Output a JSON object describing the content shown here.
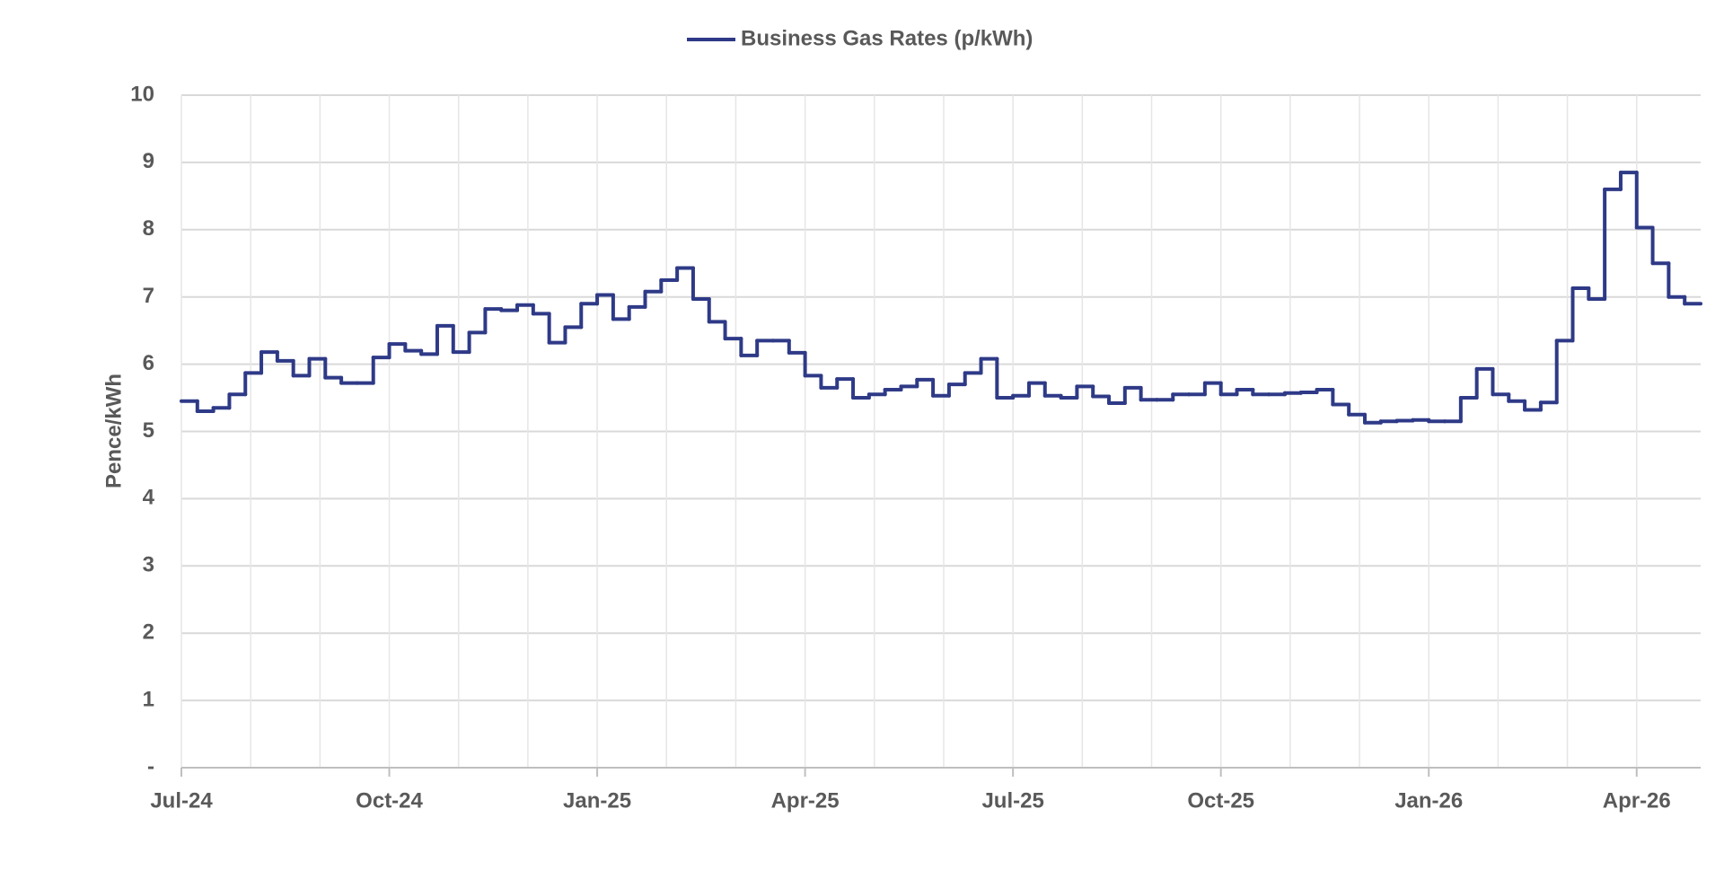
{
  "chart_data": {
    "type": "line",
    "step": true,
    "y_label": "Pence/kWh",
    "categories": [
      "Jul-24",
      null,
      null,
      null,
      null,
      null,
      null,
      null,
      null,
      null,
      null,
      null,
      null,
      "Oct-24",
      null,
      null,
      null,
      null,
      null,
      null,
      null,
      null,
      null,
      null,
      null,
      null,
      "Jan-25",
      null,
      null,
      null,
      null,
      null,
      null,
      null,
      null,
      null,
      null,
      null,
      null,
      "Apr-25",
      null,
      null,
      null,
      null,
      null,
      null,
      null,
      null,
      null,
      null,
      null,
      null,
      "Jul-25",
      null,
      null,
      null,
      null,
      null,
      null,
      null,
      null,
      null,
      null,
      null,
      null,
      "Oct-25",
      null,
      null,
      null,
      null,
      null,
      null,
      null,
      null,
      null,
      null,
      null,
      null,
      "Jan-26",
      null,
      null,
      null,
      null,
      null,
      null,
      null,
      null,
      null,
      null,
      null,
      null,
      "Apr-26",
      null,
      null,
      null
    ],
    "series": [
      {
        "name": "Business Gas Rates (p/kWh)",
        "color": "#2e3a87",
        "values": [
          5.45,
          5.3,
          5.35,
          5.55,
          5.87,
          6.18,
          6.05,
          5.83,
          6.08,
          5.8,
          5.72,
          5.72,
          6.1,
          6.3,
          6.2,
          6.15,
          6.57,
          6.18,
          6.47,
          6.82,
          6.8,
          6.88,
          6.75,
          6.32,
          6.55,
          6.9,
          7.03,
          6.67,
          6.85,
          7.08,
          7.25,
          7.43,
          6.97,
          6.63,
          6.38,
          6.13,
          6.35,
          6.35,
          6.17,
          5.83,
          5.65,
          5.78,
          5.5,
          5.55,
          5.62,
          5.67,
          5.77,
          5.53,
          5.7,
          5.87,
          6.08,
          5.5,
          5.53,
          5.72,
          5.53,
          5.5,
          5.67,
          5.52,
          5.42,
          5.65,
          5.47,
          5.47,
          5.55,
          5.55,
          5.72,
          5.55,
          5.62,
          5.55,
          5.55,
          5.57,
          5.58,
          5.62,
          5.4,
          5.25,
          5.13,
          5.15,
          5.16,
          5.17,
          5.15,
          5.15,
          5.5,
          5.93,
          5.55,
          5.45,
          5.32,
          5.43,
          6.35,
          7.13,
          6.97,
          8.6,
          8.85,
          8.03,
          7.5,
          7.0,
          6.9
        ]
      }
    ],
    "ylim": [
      0,
      10
    ],
    "yticks": [
      {
        "value": 0,
        "label": "-"
      },
      1,
      2,
      3,
      4,
      5,
      6,
      7,
      8,
      9,
      10
    ],
    "grid": true,
    "legend": "top"
  }
}
